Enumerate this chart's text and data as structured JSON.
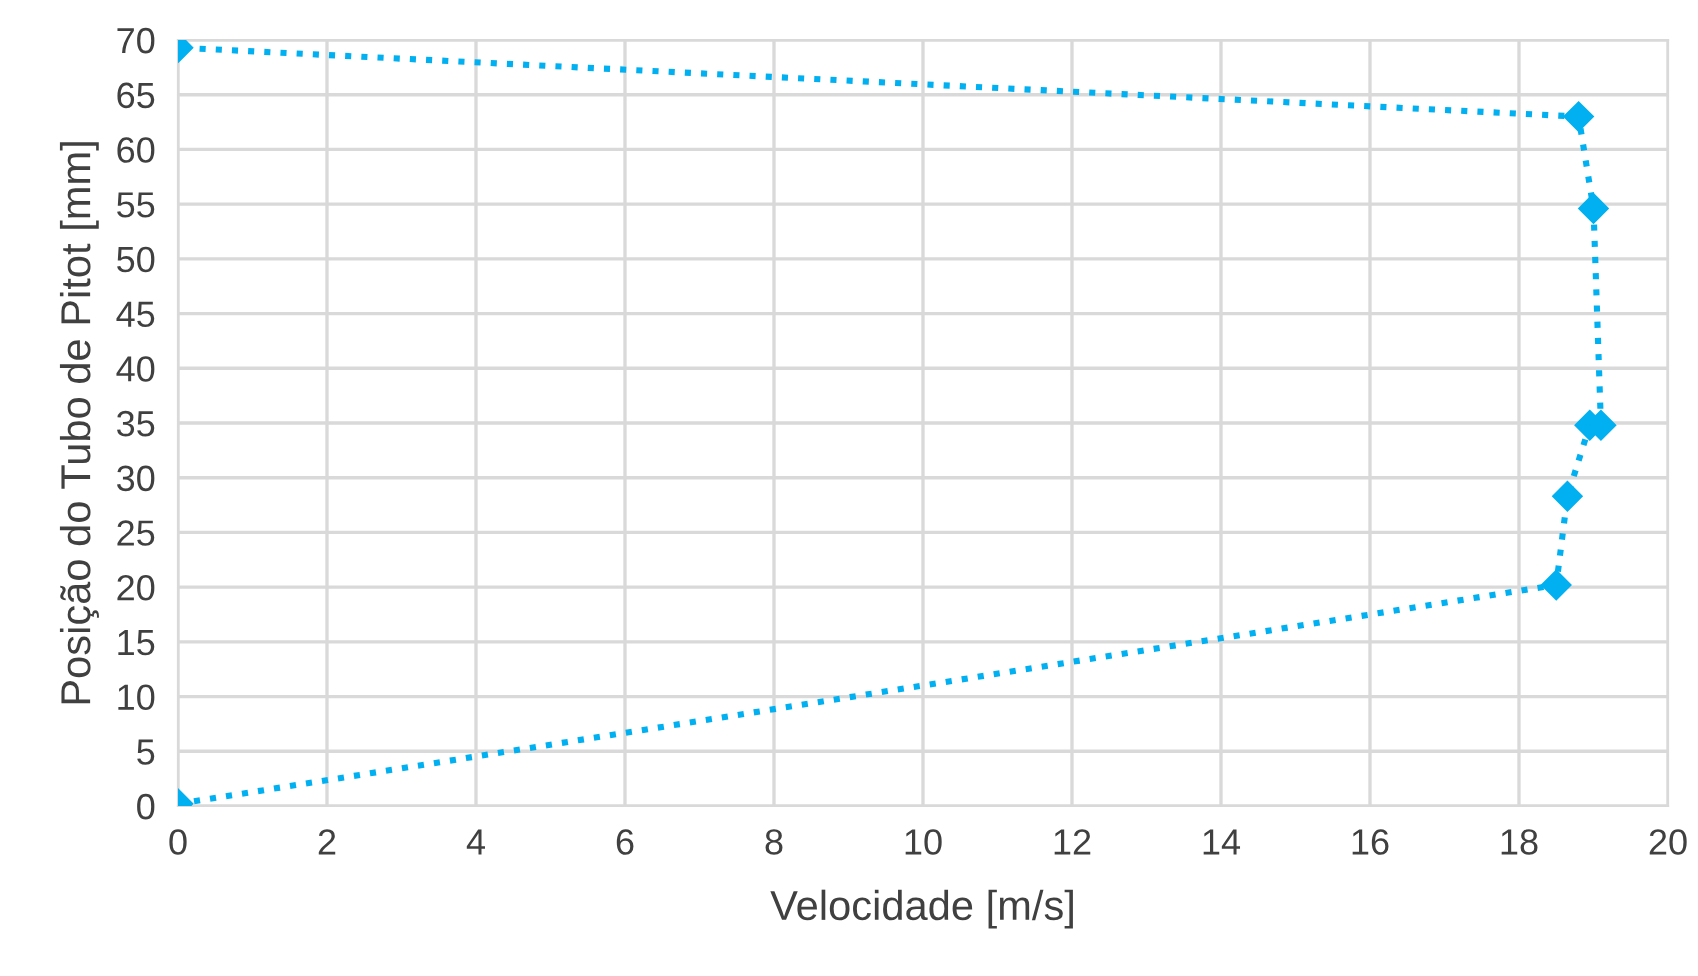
{
  "chart_data": {
    "type": "line",
    "xlabel": "Velocidade [m/s]",
    "ylabel": "Posição do Tubo de Pitot [mm]",
    "series": [
      {
        "color": "#00b0f0",
        "x": [
          0,
          18.5,
          18.65,
          18.95,
          19.1,
          19.0,
          18.8,
          0
        ],
        "values": [
          0.2,
          20.2,
          28.3,
          34.8,
          34.8,
          54.6,
          63.0,
          69.3
        ]
      }
    ],
    "xlim": [
      0,
      20
    ],
    "xticks": [
      0,
      2,
      4,
      6,
      8,
      10,
      12,
      14,
      16,
      18,
      20
    ],
    "ylim": [
      0,
      70
    ],
    "yticks": [
      0,
      5,
      10,
      15,
      20,
      25,
      30,
      35,
      40,
      45,
      50,
      55,
      60,
      65,
      70
    ],
    "grid": true,
    "marker": "diamond",
    "line_style": "dotted"
  }
}
